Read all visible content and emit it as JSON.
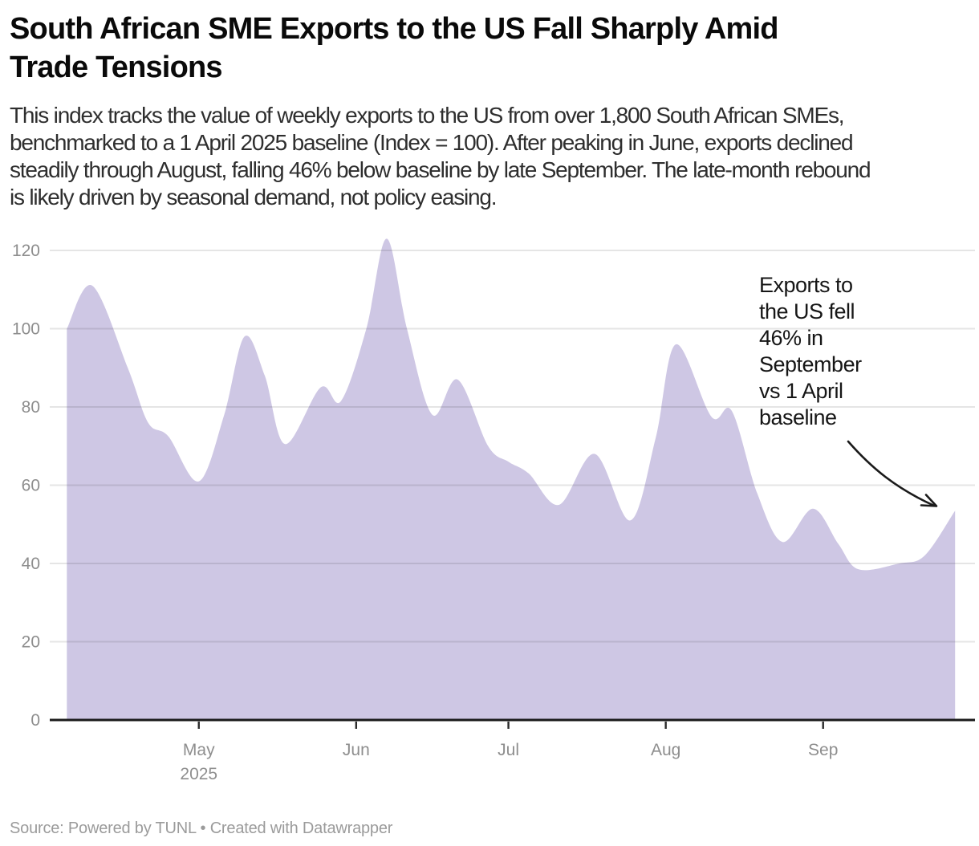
{
  "header": {
    "title_lines": [
      "South African SME Exports to the US Fall Sharply Amid",
      "Trade Tensions"
    ],
    "description_lines": [
      "This index tracks the value of weekly exports to the US from over 1,800 South African SMEs,",
      "benchmarked to a 1 April 2025 baseline (Index = 100). After peaking in June, exports declined",
      "steadily through August, falling 46% below baseline by late September. The late-month rebound",
      "is likely driven by seasonal demand, not policy easing."
    ]
  },
  "annotation": {
    "lines": [
      "Exports to",
      "the US fell",
      "46% in",
      "September",
      "vs 1 April",
      "baseline"
    ]
  },
  "footer": {
    "source": "Source: Powered by TUNL • Created with Datawrapper"
  },
  "colors": {
    "area_fill": "#cec7e4",
    "grid_line": "rgba(17,17,17,0.11)",
    "axis_line": "#1a1a1a",
    "tick_mark": "#2b2b2b",
    "tick_label": "#8e8e8e",
    "annotation_text": "#161616",
    "arrow": "#1a1a1a"
  },
  "chart_data": {
    "type": "area",
    "title": "South African SME Exports to the US Fall Sharply Amid Trade Tensions",
    "xlabel": "",
    "ylabel": "",
    "baseline_date": "2025-04-01",
    "baseline_note": "Index = 100 at 1 April 2025",
    "ylim": [
      0,
      126
    ],
    "y_ticks": [
      0,
      20,
      40,
      60,
      80,
      100,
      120
    ],
    "x_ticks": [
      {
        "date": "2025-05-01",
        "label": "May",
        "sublabel": "2025"
      },
      {
        "date": "2025-06-01",
        "label": "Jun",
        "sublabel": ""
      },
      {
        "date": "2025-07-01",
        "label": "Jul",
        "sublabel": ""
      },
      {
        "date": "2025-08-01",
        "label": "Aug",
        "sublabel": ""
      },
      {
        "date": "2025-09-01",
        "label": "Sep",
        "sublabel": ""
      }
    ],
    "grid": "horizontal",
    "legend": "none",
    "series": [
      {
        "points": [
          {
            "date": "2025-04-05",
            "value": 100
          },
          {
            "date": "2025-04-10",
            "value": 111
          },
          {
            "date": "2025-04-17",
            "value": 90
          },
          {
            "date": "2025-04-21",
            "value": 76
          },
          {
            "date": "2025-04-25",
            "value": 72.5
          },
          {
            "date": "2025-05-01",
            "value": 61
          },
          {
            "date": "2025-05-06",
            "value": 78
          },
          {
            "date": "2025-05-10",
            "value": 98
          },
          {
            "date": "2025-05-14",
            "value": 88
          },
          {
            "date": "2025-05-18",
            "value": 70.5
          },
          {
            "date": "2025-05-25",
            "value": 85
          },
          {
            "date": "2025-05-29",
            "value": 81.5
          },
          {
            "date": "2025-06-03",
            "value": 100
          },
          {
            "date": "2025-06-07",
            "value": 123
          },
          {
            "date": "2025-06-11",
            "value": 100
          },
          {
            "date": "2025-06-16",
            "value": 78
          },
          {
            "date": "2025-06-21",
            "value": 87
          },
          {
            "date": "2025-06-27",
            "value": 70
          },
          {
            "date": "2025-07-01",
            "value": 66
          },
          {
            "date": "2025-07-05",
            "value": 63
          },
          {
            "date": "2025-07-11",
            "value": 55
          },
          {
            "date": "2025-07-18",
            "value": 68
          },
          {
            "date": "2025-07-25",
            "value": 51
          },
          {
            "date": "2025-07-30",
            "value": 72
          },
          {
            "date": "2025-08-03",
            "value": 96
          },
          {
            "date": "2025-08-10",
            "value": 77.5
          },
          {
            "date": "2025-08-14",
            "value": 79
          },
          {
            "date": "2025-08-19",
            "value": 58
          },
          {
            "date": "2025-08-24",
            "value": 45.5
          },
          {
            "date": "2025-08-30",
            "value": 54
          },
          {
            "date": "2025-09-04",
            "value": 45
          },
          {
            "date": "2025-09-08",
            "value": 38.5
          },
          {
            "date": "2025-09-16",
            "value": 40
          },
          {
            "date": "2025-09-21",
            "value": 42
          },
          {
            "date": "2025-09-27",
            "value": 53.5
          }
        ]
      }
    ]
  }
}
